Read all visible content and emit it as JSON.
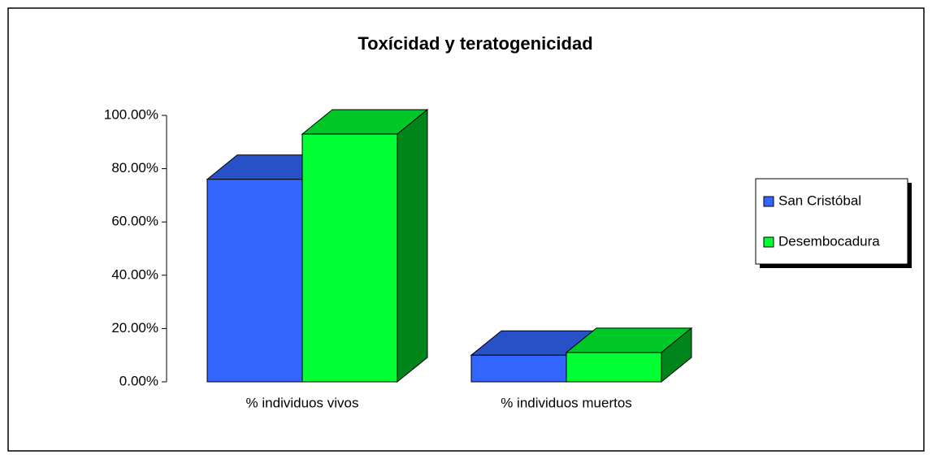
{
  "chart_data": {
    "type": "bar3d",
    "title": "Toxícidad y teratogenicidad",
    "categories": [
      "% individuos vivos",
      "% individuos muertos"
    ],
    "series": [
      {
        "name": "San Cristóbal",
        "color": "#3366ff",
        "values": [
          76,
          10
        ]
      },
      {
        "name": "Desembocadura",
        "color": "#00ff33",
        "values": [
          93,
          11
        ]
      }
    ],
    "ylim": [
      0,
      100
    ],
    "yticks": [
      {
        "value": 0,
        "label": "0.00%"
      },
      {
        "value": 20,
        "label": "20.00%"
      },
      {
        "value": 40,
        "label": "40.00%"
      },
      {
        "value": 60,
        "label": "60.00%"
      },
      {
        "value": 80,
        "label": "80.00%"
      },
      {
        "value": 100,
        "label": "100.00%"
      }
    ],
    "legend": "right"
  }
}
